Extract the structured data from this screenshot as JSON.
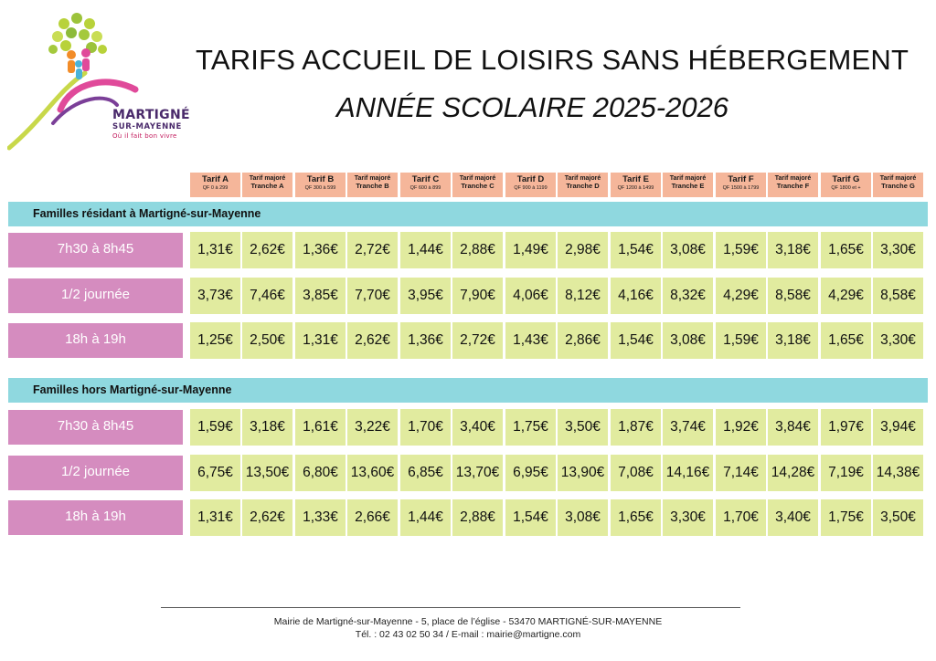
{
  "logo": {
    "name": "MARTIGNÉ",
    "sub": "SUR-MAYENNE",
    "slogan": "Où il fait bon vivre"
  },
  "title": "TARIFS ACCUEIL DE LOISIRS SANS HÉBERGEMENT",
  "subtitle": "ANNÉE SCOLAIRE 2025-2026",
  "colors": {
    "header": "#f5b69a",
    "section": "#8fd8df",
    "label": "#d58cbf",
    "cell": "#e1eb9f"
  },
  "columns": [
    {
      "label": "Tarif A",
      "sub": "QF 0 à 299"
    },
    {
      "label": "Tarif majoré",
      "sub": "Tranche A"
    },
    {
      "label": "Tarif B",
      "sub": "QF 300 à 599"
    },
    {
      "label": "Tarif majoré",
      "sub": "Tranche B"
    },
    {
      "label": "Tarif C",
      "sub": "QF 600 à 899"
    },
    {
      "label": "Tarif majoré",
      "sub": "Tranche C"
    },
    {
      "label": "Tarif D",
      "sub": "QF 900 à 1199"
    },
    {
      "label": "Tarif majoré",
      "sub": "Tranche D"
    },
    {
      "label": "Tarif E",
      "sub": "QF 1200 à 1499"
    },
    {
      "label": "Tarif majoré",
      "sub": "Tranche E"
    },
    {
      "label": "Tarif F",
      "sub": "QF 1500 à 1799"
    },
    {
      "label": "Tarif majoré",
      "sub": "Tranche F"
    },
    {
      "label": "Tarif G",
      "sub": "QF 1800 et +"
    },
    {
      "label": "Tarif majoré",
      "sub": "Tranche G"
    }
  ],
  "sections": [
    {
      "title": "Familles résidant à Martigné-sur-Mayenne",
      "rows": [
        {
          "label": "7h30 à 8h45",
          "values": [
            "1,31€",
            "2,62€",
            "1,36€",
            "2,72€",
            "1,44€",
            "2,88€",
            "1,49€",
            "2,98€",
            "1,54€",
            "3,08€",
            "1,59€",
            "3,18€",
            "1,65€",
            "3,30€"
          ]
        },
        {
          "label": "1/2 journée",
          "values": [
            "3,73€",
            "7,46€",
            "3,85€",
            "7,70€",
            "3,95€",
            "7,90€",
            "4,06€",
            "8,12€",
            "4,16€",
            "8,32€",
            "4,29€",
            "8,58€",
            "4,29€",
            "8,58€"
          ]
        },
        {
          "label": "18h à 19h",
          "values": [
            "1,25€",
            "2,50€",
            "1,31€",
            "2,62€",
            "1,36€",
            "2,72€",
            "1,43€",
            "2,86€",
            "1,54€",
            "3,08€",
            "1,59€",
            "3,18€",
            "1,65€",
            "3,30€"
          ]
        }
      ]
    },
    {
      "title": "Familles hors Martigné-sur-Mayenne",
      "rows": [
        {
          "label": "7h30 à 8h45",
          "values": [
            "1,59€",
            "3,18€",
            "1,61€",
            "3,22€",
            "1,70€",
            "3,40€",
            "1,75€",
            "3,50€",
            "1,87€",
            "3,74€",
            "1,92€",
            "3,84€",
            "1,97€",
            "3,94€"
          ]
        },
        {
          "label": "1/2 journée",
          "values": [
            "6,75€",
            "13,50€",
            "6,80€",
            "13,60€",
            "6,85€",
            "13,70€",
            "6,95€",
            "13,90€",
            "7,08€",
            "14,16€",
            "7,14€",
            "14,28€",
            "7,19€",
            "14,38€"
          ]
        },
        {
          "label": "18h à 19h",
          "values": [
            "1,31€",
            "2,62€",
            "1,33€",
            "2,66€",
            "1,44€",
            "2,88€",
            "1,54€",
            "3,08€",
            "1,65€",
            "3,30€",
            "1,70€",
            "3,40€",
            "1,75€",
            "3,50€"
          ]
        }
      ]
    }
  ],
  "footer": {
    "line1": "Mairie de Martigné-sur-Mayenne - 5, place de l’église - 53470 MARTIGNÉ-SUR-MAYENNE",
    "line2": "Tél. : 02 43 02 50 34 / E-mail : mairie@martigne.com"
  }
}
